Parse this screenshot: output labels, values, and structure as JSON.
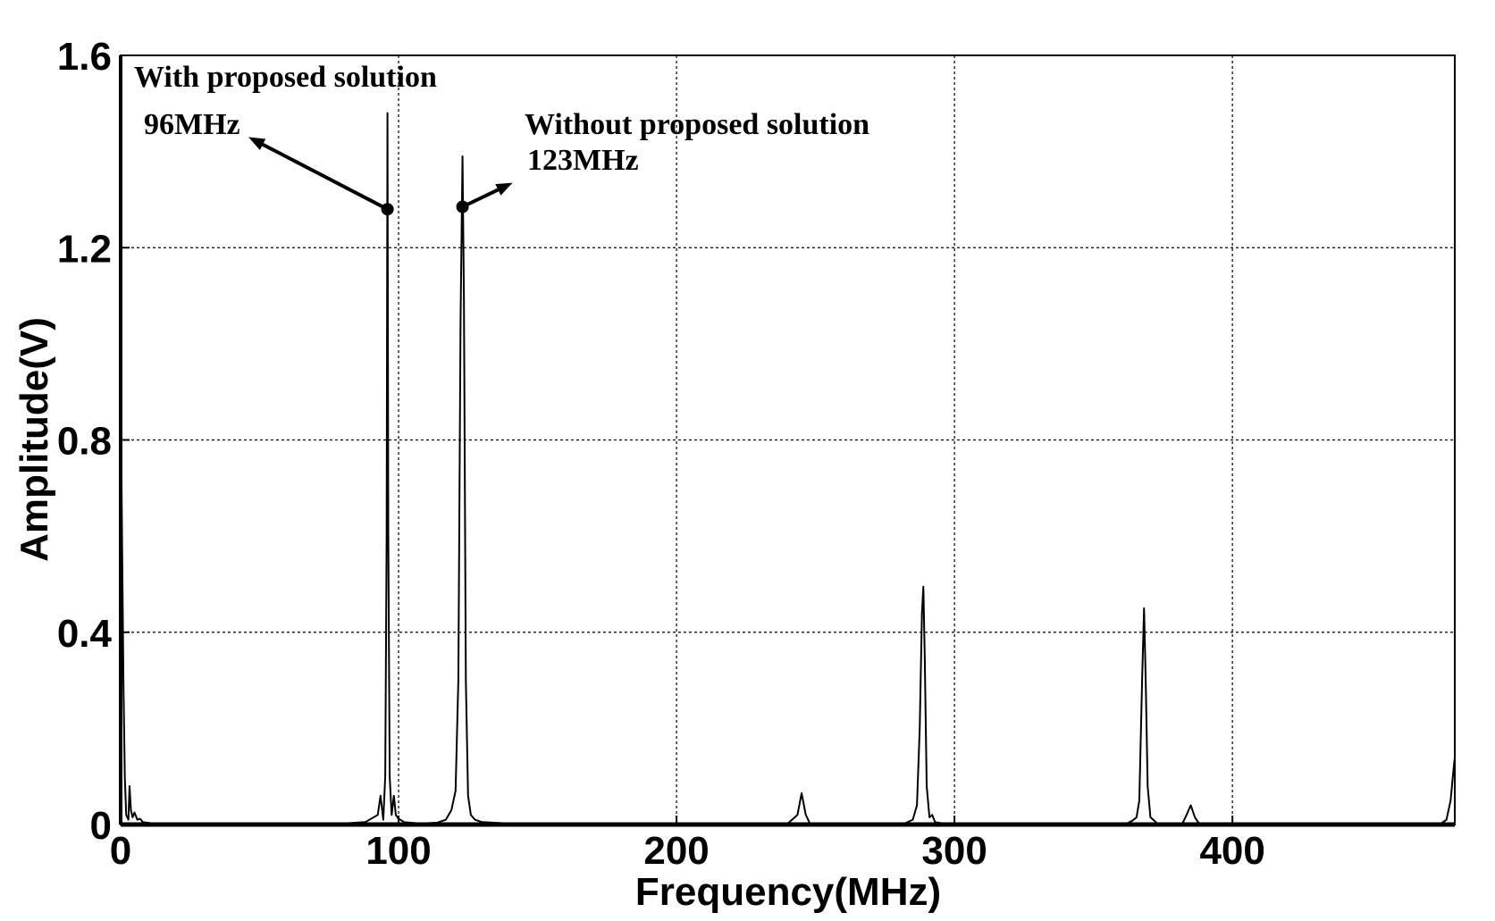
{
  "chart_data": {
    "type": "line",
    "title": "",
    "xlabel": "Frequency(MHz)",
    "ylabel": "Amplitude(V)",
    "xlim": [
      0,
      480
    ],
    "ylim": [
      0,
      1.6
    ],
    "xticks": [
      0,
      100,
      200,
      300,
      400
    ],
    "xtick_labels": [
      "0",
      "100",
      "200",
      "300",
      "400"
    ],
    "yticks": [
      0,
      0.4,
      0.8,
      1.2,
      1.6
    ],
    "ytick_labels": [
      "0",
      "0.4",
      "0.8",
      "1.2",
      "1.6"
    ],
    "grid": true,
    "legend": "none",
    "line_color": "#000000",
    "series": [
      {
        "values": [
          [
            0,
            0.93
          ],
          [
            0.5,
            0.6
          ],
          [
            1,
            0.3
          ],
          [
            1.5,
            0.1
          ],
          [
            2,
            0.02
          ],
          [
            2.8,
            0.01
          ],
          [
            3.2,
            0.08
          ],
          [
            3.7,
            0.03
          ],
          [
            4.3,
            0.015
          ],
          [
            5,
            0.025
          ],
          [
            6,
            0.01
          ],
          [
            7,
            0.012
          ],
          [
            8,
            0.005
          ],
          [
            12,
            0.002
          ],
          [
            80,
            0.002
          ],
          [
            88,
            0.005
          ],
          [
            91,
            0.015
          ],
          [
            92.5,
            0.02
          ],
          [
            93.5,
            0.06
          ],
          [
            94.5,
            0.01
          ],
          [
            95.2,
            0.1
          ],
          [
            95.7,
            0.6
          ],
          [
            96,
            1.48
          ],
          [
            96.3,
            0.6
          ],
          [
            96.8,
            0.1
          ],
          [
            97.5,
            0.02
          ],
          [
            98.3,
            0.06
          ],
          [
            99,
            0.02
          ],
          [
            100,
            0.012
          ],
          [
            102,
            0.005
          ],
          [
            108,
            0.002
          ],
          [
            114,
            0.004
          ],
          [
            117,
            0.01
          ],
          [
            119,
            0.03
          ],
          [
            120.5,
            0.07
          ],
          [
            121.5,
            0.3
          ],
          [
            122.3,
            1.05
          ],
          [
            123,
            1.39
          ],
          [
            123.5,
            1.1
          ],
          [
            124.2,
            0.3
          ],
          [
            125,
            0.06
          ],
          [
            126,
            0.02
          ],
          [
            127.5,
            0.01
          ],
          [
            130,
            0.005
          ],
          [
            140,
            0.002
          ],
          [
            240,
            0.002
          ],
          [
            243.5,
            0.02
          ],
          [
            245,
            0.065
          ],
          [
            246.5,
            0.02
          ],
          [
            248,
            0.002
          ],
          [
            282,
            0.002
          ],
          [
            285,
            0.01
          ],
          [
            286.5,
            0.04
          ],
          [
            287.5,
            0.2
          ],
          [
            288.3,
            0.44
          ],
          [
            288.8,
            0.495
          ],
          [
            289.3,
            0.35
          ],
          [
            290,
            0.08
          ],
          [
            291,
            0.015
          ],
          [
            292,
            0.02
          ],
          [
            293,
            0.005
          ],
          [
            296,
            0.002
          ],
          [
            362,
            0.002
          ],
          [
            364,
            0.008
          ],
          [
            365.5,
            0.015
          ],
          [
            366.5,
            0.05
          ],
          [
            367.5,
            0.3
          ],
          [
            368.2,
            0.45
          ],
          [
            368.8,
            0.3
          ],
          [
            369.5,
            0.08
          ],
          [
            370.5,
            0.015
          ],
          [
            371.5,
            0.01
          ],
          [
            373,
            0.002
          ],
          [
            382,
            0.002
          ],
          [
            383.5,
            0.02
          ],
          [
            385,
            0.04
          ],
          [
            386.5,
            0.015
          ],
          [
            388,
            0.002
          ],
          [
            475,
            0.002
          ],
          [
            477,
            0.01
          ],
          [
            478.5,
            0.05
          ],
          [
            479.3,
            0.1
          ],
          [
            480,
            0.14
          ]
        ]
      }
    ],
    "annotations": [
      {
        "id": "with",
        "lines": [
          "With proposed solution",
          "96MHz"
        ],
        "marker": [
          96,
          1.28
        ],
        "arrow_to": [
          46,
          1.43
        ]
      },
      {
        "id": "without",
        "lines": [
          "Without proposed solution",
          "123MHz"
        ],
        "marker": [
          123,
          1.285
        ],
        "arrow_to": [
          141,
          1.335
        ]
      }
    ]
  }
}
